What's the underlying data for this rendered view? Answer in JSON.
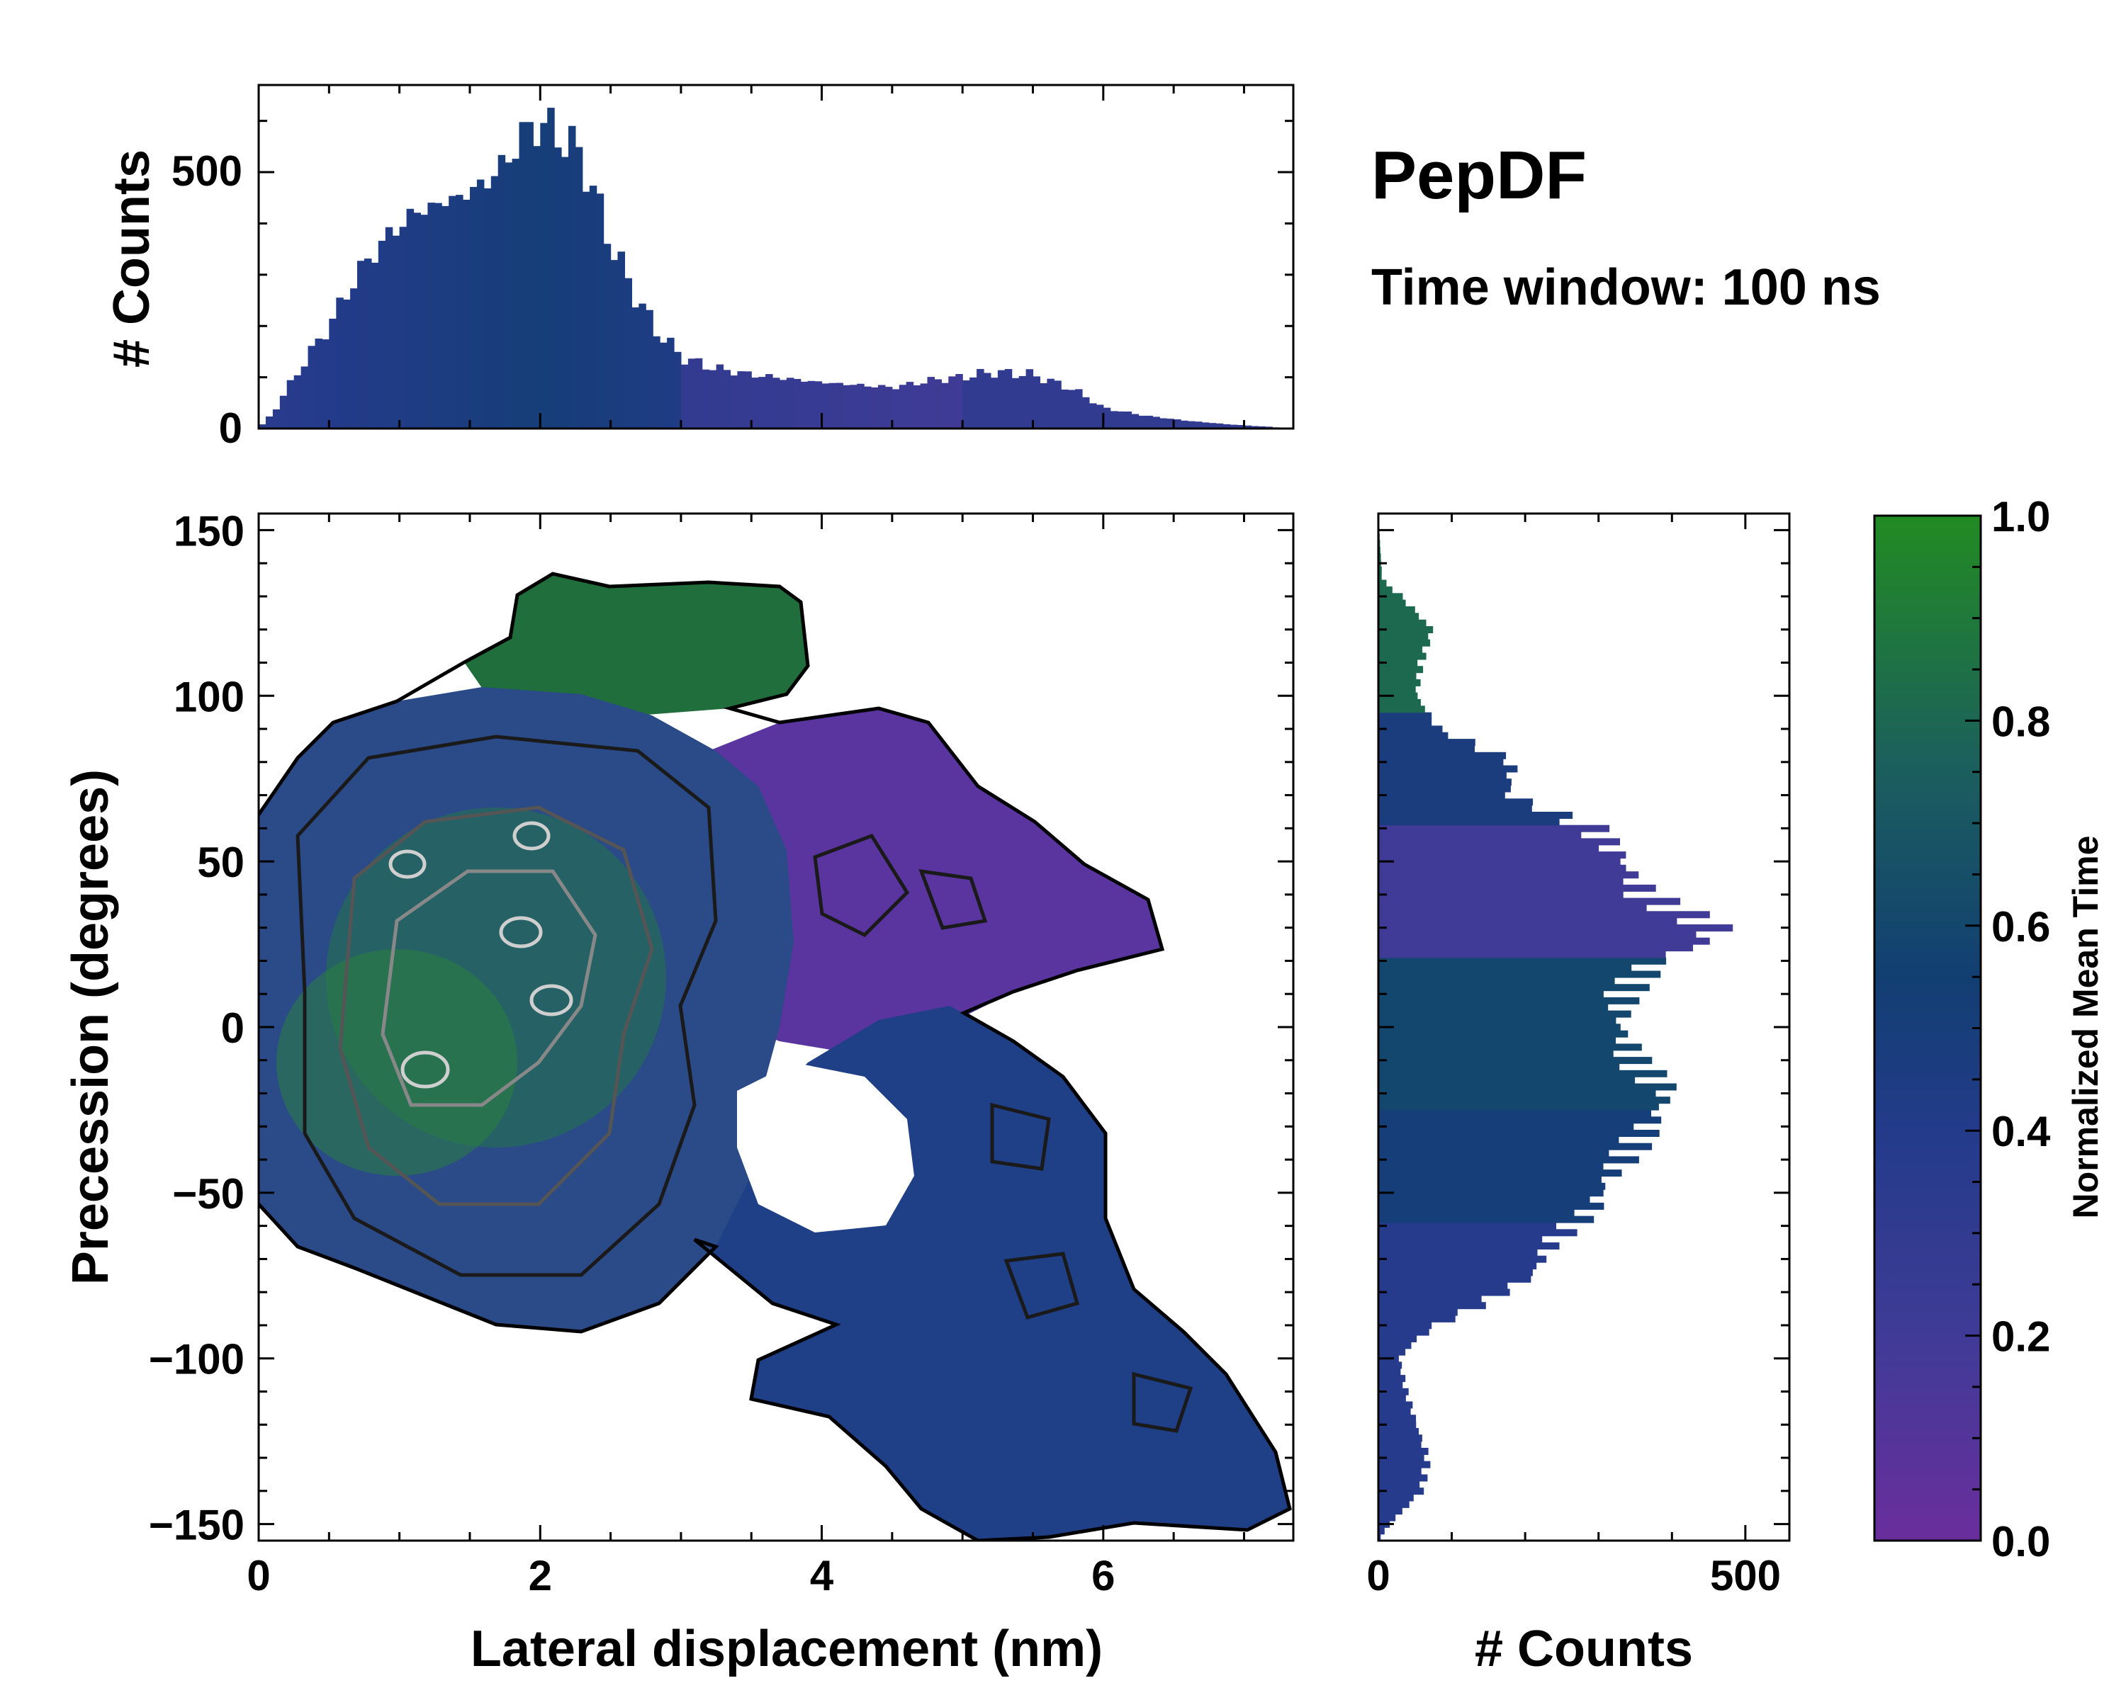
{
  "chart_data": {
    "type": "joint-histogram",
    "title": "PepDF",
    "subtitle": "Time window: 100 ns",
    "main": {
      "type": "heatmap",
      "xlabel": "Lateral displacement (nm)",
      "ylabel": "Precession (degrees)",
      "xlim": [
        0,
        7.35
      ],
      "ylim": [
        -155,
        155
      ],
      "xticks": [
        0,
        2,
        4,
        6
      ],
      "xtick_labels": [
        "0",
        "2",
        "4",
        "6"
      ],
      "yticks": [
        150,
        100,
        50,
        0,
        -50,
        -100,
        -150
      ],
      "ytick_labels": [
        "150",
        "100",
        "50",
        "0",
        "−50",
        "−100",
        "−150"
      ],
      "regions": [
        {
          "name": "left main cluster",
          "x_range": [
            0,
            3.3
          ],
          "y_range": [
            -90,
            95
          ],
          "mean_time": 0.55
        },
        {
          "name": "upper green cluster",
          "x_range": [
            1.5,
            4.0
          ],
          "y_range": [
            70,
            130
          ],
          "mean_time": 0.85
        },
        {
          "name": "upper-right purple lobe",
          "x_range": [
            3.0,
            6.5
          ],
          "y_range": [
            0,
            90
          ],
          "mean_time": 0.15
        },
        {
          "name": "lower-right blue lobe",
          "x_range": [
            3.5,
            7.3
          ],
          "y_range": [
            -150,
            10
          ],
          "mean_time": 0.35
        }
      ],
      "density_peaks": [
        {
          "x": 2.1,
          "y": 5
        },
        {
          "x": 1.15,
          "y": -18
        },
        {
          "x": 1.9,
          "y": 28
        },
        {
          "x": 1.1,
          "y": 45
        },
        {
          "x": 2.05,
          "y": 58
        }
      ]
    },
    "top_histogram": {
      "type": "bar",
      "ylabel": "# Counts",
      "ylim": [
        0,
        670
      ],
      "yticks": [
        0,
        500
      ],
      "ytick_labels": [
        "0",
        "500"
      ],
      "bin_width": 0.05,
      "profile_x": [
        0,
        0.1,
        0.3,
        0.5,
        0.7,
        0.9,
        1.1,
        1.3,
        1.5,
        1.7,
        1.9,
        2.0,
        2.1,
        2.3,
        2.45,
        2.6,
        2.8,
        3.0,
        3.2,
        3.5,
        4.0,
        4.5,
        4.8,
        5.0,
        5.2,
        5.5,
        5.8,
        6.0,
        6.3,
        6.6,
        6.9,
        7.2,
        7.35
      ],
      "profile_counts": [
        0,
        30,
        120,
        200,
        300,
        370,
        420,
        440,
        460,
        500,
        580,
        595,
        580,
        530,
        400,
        300,
        200,
        140,
        120,
        105,
        90,
        80,
        95,
        100,
        110,
        105,
        75,
        40,
        25,
        15,
        8,
        3,
        0
      ]
    },
    "right_histogram": {
      "type": "barh",
      "xlabel": "# Counts",
      "xlim": [
        0,
        560
      ],
      "xticks": [
        0,
        500
      ],
      "xtick_labels": [
        "0",
        "500"
      ],
      "bin_width": 2,
      "profile_y": [
        -155,
        -150,
        -140,
        -130,
        -120,
        -110,
        -100,
        -95,
        -90,
        -85,
        -75,
        -65,
        -55,
        -45,
        -30,
        -20,
        -10,
        0,
        10,
        20,
        25,
        30,
        35,
        40,
        50,
        60,
        70,
        80,
        85,
        90,
        100,
        110,
        120,
        130,
        135,
        155
      ],
      "profile_counts": [
        0,
        15,
        60,
        70,
        55,
        40,
        30,
        50,
        80,
        130,
        210,
        230,
        280,
        300,
        350,
        380,
        340,
        330,
        340,
        390,
        460,
        480,
        430,
        380,
        350,
        300,
        180,
        180,
        130,
        80,
        50,
        55,
        70,
        30,
        5,
        0
      ]
    },
    "colorbar": {
      "label": "Normalized Mean Time",
      "range": [
        0.0,
        1.0
      ],
      "ticks": [
        1.0,
        0.8,
        0.6,
        0.4,
        0.2,
        0.0
      ],
      "tick_labels": [
        "1.0",
        "0.8",
        "0.6",
        "0.4",
        "0.2",
        "0.0"
      ],
      "colors": [
        "#6a2e9c",
        "#3f3b96",
        "#233b8a",
        "#123f72",
        "#1b5e5e",
        "#228b22"
      ]
    }
  }
}
